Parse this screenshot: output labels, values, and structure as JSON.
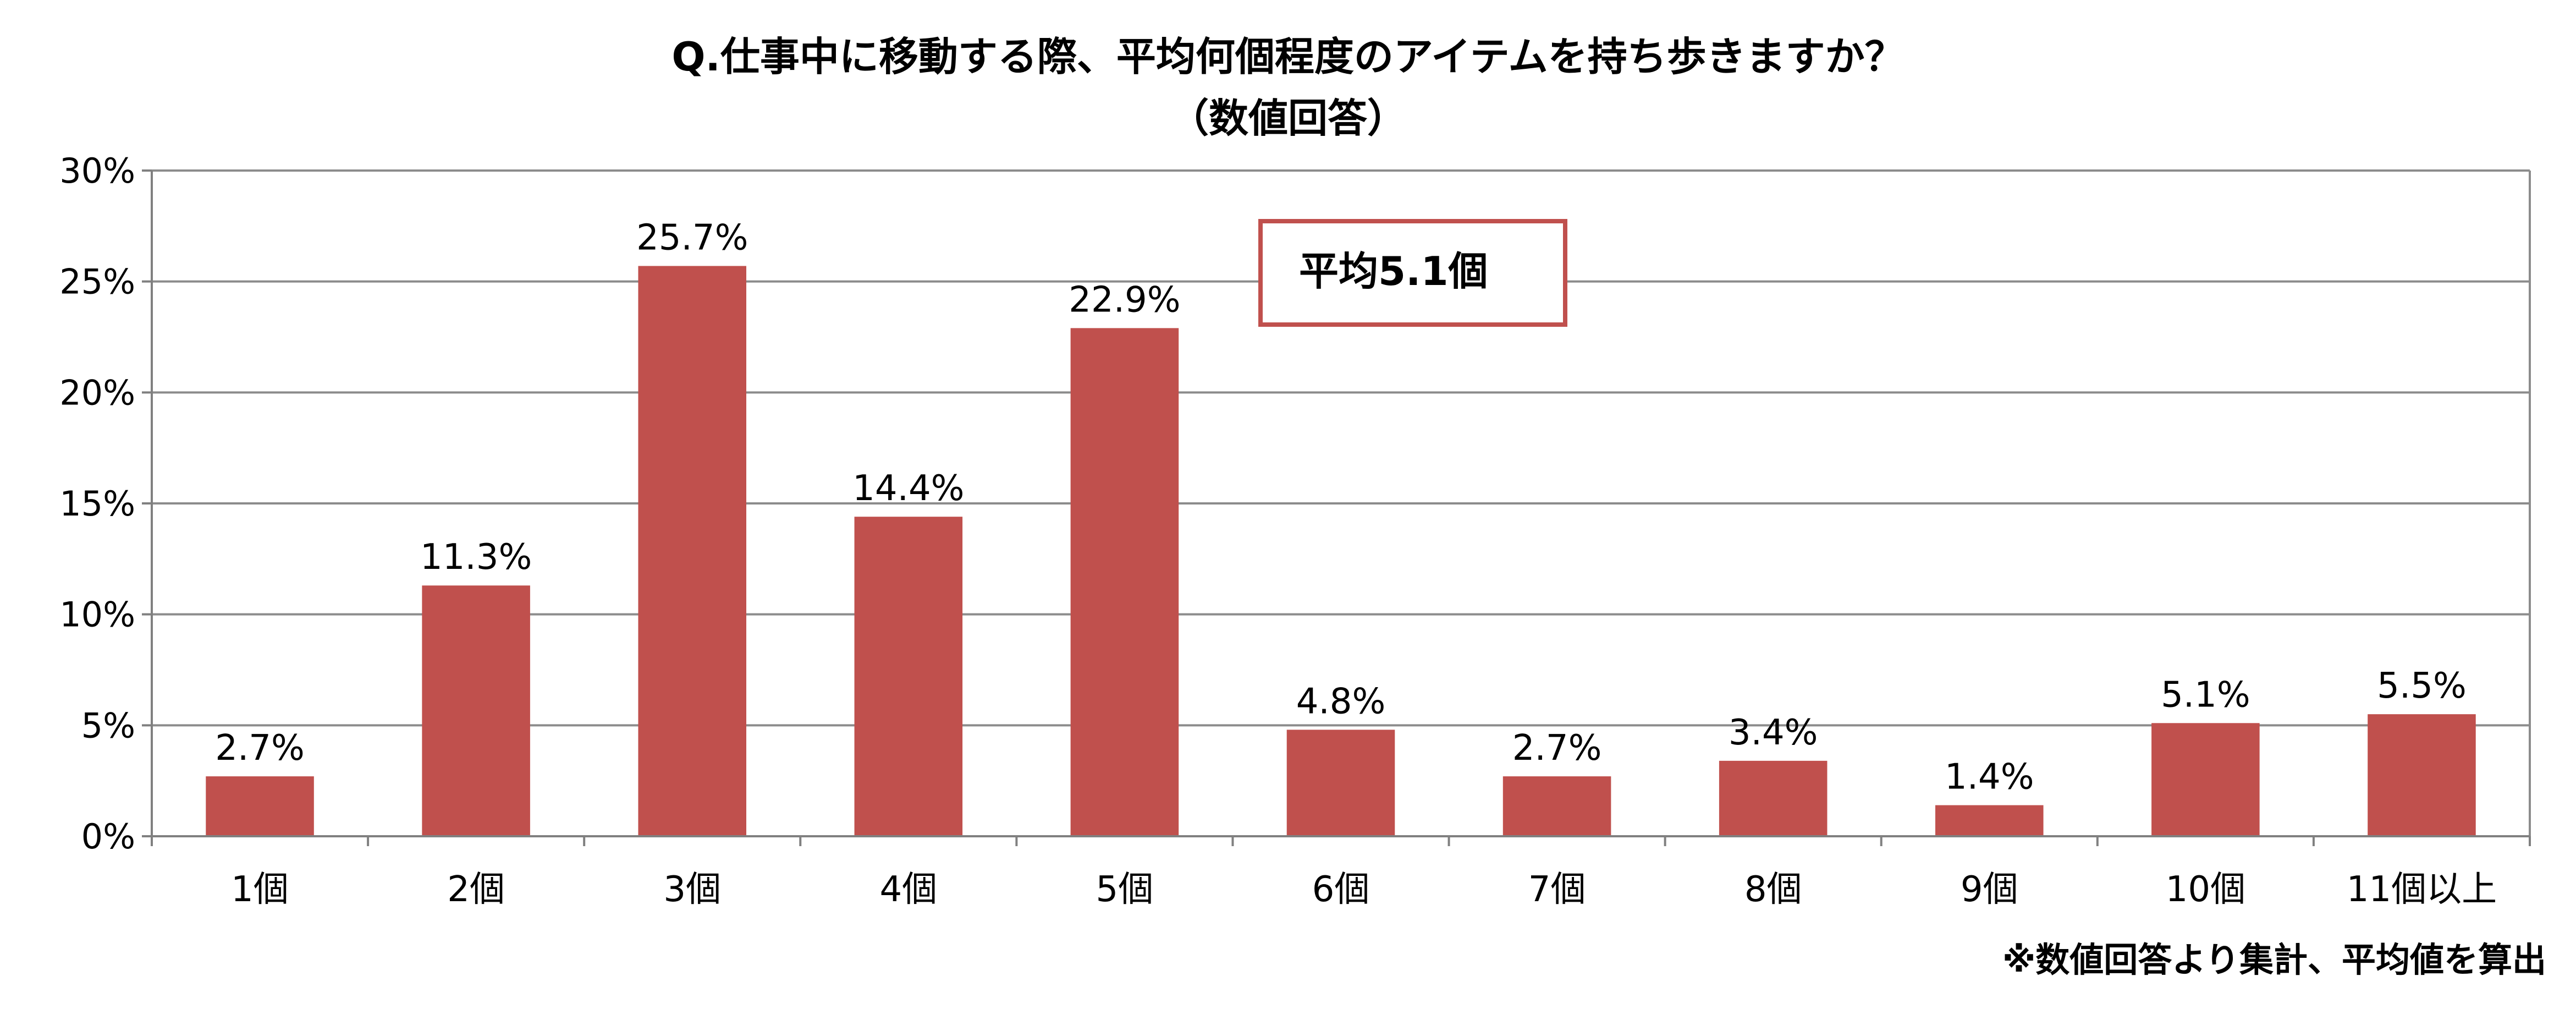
{
  "chart_data": {
    "type": "bar",
    "title": "Q.仕事中に移動する際、平均何個程度のアイテムを持ち歩きますか？",
    "subtitle": "（数値回答）",
    "categories": [
      "1個",
      "2個",
      "3個",
      "4個",
      "5個",
      "6個",
      "7個",
      "8個",
      "9個",
      "10個",
      "11個以上"
    ],
    "values": [
      2.7,
      11.3,
      25.7,
      14.4,
      22.9,
      4.8,
      2.7,
      3.4,
      1.4,
      5.1,
      5.5
    ],
    "data_labels": [
      "2.7%",
      "11.3%",
      "25.7%",
      "14.4%",
      "22.9%",
      "4.8%",
      "2.7%",
      "3.4%",
      "1.4%",
      "5.1%",
      "5.5%"
    ],
    "ylim": [
      0,
      30
    ],
    "yticks": [
      0,
      5,
      10,
      15,
      20,
      25,
      30
    ],
    "ytick_labels": [
      "0%",
      "5%",
      "10%",
      "15%",
      "20%",
      "25%",
      "30%"
    ],
    "xlabel": "",
    "ylabel": "",
    "grid": true,
    "bar_color": "#c0504d",
    "annotation": "平均5.1個",
    "annotation_border_color": "#c0504d",
    "footnote": "※数値回答より集計、平均値を算出"
  }
}
